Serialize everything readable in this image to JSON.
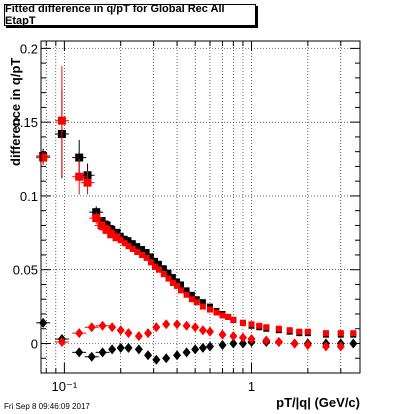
{
  "title": "Fitted difference in q/pT for Global Rec All EtapT",
  "xlabel": "pT/|q| (GeV/c)",
  "ylabel": "difference in q/pT",
  "timestamp": "Fri Sep  8 09:46:09 2017",
  "chart_data": {
    "type": "scatter",
    "title": "Fitted difference in q/pT for Global Rec All EtapT",
    "xlabel": "pT/|q| (GeV/c)",
    "ylabel": "difference in q/pT",
    "xscale": "log",
    "xlim": [
      0.075,
      3.8
    ],
    "ylim": [
      -0.02,
      0.205
    ],
    "grid": true,
    "x_ticks": [
      {
        "value": 0.1,
        "label": "10⁻¹"
      },
      {
        "value": 1,
        "label": "1"
      }
    ],
    "y_ticks": [
      {
        "value": 0,
        "label": "0"
      },
      {
        "value": 0.05,
        "label": "0.05"
      },
      {
        "value": 0.1,
        "label": "0.1"
      },
      {
        "value": 0.15,
        "label": "0.15"
      },
      {
        "value": 0.2,
        "label": "0.2"
      }
    ],
    "series": [
      {
        "marker": "square",
        "color": "#000000",
        "x": [
          0.077,
          0.097,
          0.12,
          0.133,
          0.148,
          0.158,
          0.168,
          0.178,
          0.19,
          0.2,
          0.21,
          0.22,
          0.232,
          0.245,
          0.26,
          0.275,
          0.29,
          0.305,
          0.32,
          0.34,
          0.36,
          0.38,
          0.4,
          0.42,
          0.45,
          0.48,
          0.51,
          0.55,
          0.6,
          0.65,
          0.7,
          0.75,
          0.8,
          0.9,
          1.0,
          1.1,
          1.2,
          1.4,
          1.6,
          1.8,
          2.0,
          2.5,
          3.0,
          3.5
        ],
        "y": [
          0.127,
          0.142,
          0.126,
          0.114,
          0.089,
          0.083,
          0.08,
          0.077,
          0.075,
          0.073,
          0.071,
          0.07,
          0.068,
          0.066,
          0.064,
          0.062,
          0.059,
          0.056,
          0.054,
          0.051,
          0.048,
          0.045,
          0.042,
          0.04,
          0.036,
          0.033,
          0.03,
          0.028,
          0.025,
          0.022,
          0.02,
          0.018,
          0.016,
          0.014,
          0.012,
          0.011,
          0.01,
          0.009,
          0.008,
          0.007,
          0.007,
          0.006,
          0.006,
          0.006
        ],
        "yerr": [
          0.005,
          0.03,
          0.012,
          0.008,
          0.004,
          0.002,
          0.001,
          0.001,
          0.001,
          0.001,
          0.001,
          0.001,
          0.001,
          0.001,
          0.001,
          0.001,
          0.001,
          0.001,
          0.001,
          0.001,
          0.001,
          0.001,
          0.001,
          0.001,
          0.001,
          0.001,
          0.001,
          0.001,
          0.001,
          0.001,
          0.001,
          0.001,
          0.001,
          0.001,
          0.001,
          0.001,
          0.001,
          0.001,
          0.001,
          0.001,
          0.001,
          0.001,
          0.001,
          0.001
        ]
      },
      {
        "marker": "square",
        "color": "#ff0000",
        "x": [
          0.077,
          0.097,
          0.12,
          0.133,
          0.148,
          0.158,
          0.168,
          0.178,
          0.19,
          0.2,
          0.21,
          0.22,
          0.232,
          0.245,
          0.26,
          0.275,
          0.29,
          0.305,
          0.32,
          0.34,
          0.36,
          0.38,
          0.4,
          0.42,
          0.45,
          0.48,
          0.51,
          0.55,
          0.6,
          0.65,
          0.7,
          0.75,
          0.8,
          0.9,
          1.0,
          1.1,
          1.2,
          1.4,
          1.6,
          1.8,
          2.0,
          2.5,
          3.0,
          3.5
        ],
        "y": [
          0.126,
          0.151,
          0.113,
          0.109,
          0.085,
          0.08,
          0.077,
          0.074,
          0.072,
          0.07,
          0.068,
          0.066,
          0.064,
          0.062,
          0.06,
          0.058,
          0.055,
          0.052,
          0.05,
          0.047,
          0.044,
          0.041,
          0.039,
          0.036,
          0.033,
          0.03,
          0.028,
          0.025,
          0.023,
          0.021,
          0.019,
          0.018,
          0.016,
          0.014,
          0.013,
          0.012,
          0.011,
          0.01,
          0.009,
          0.008,
          0.008,
          0.007,
          0.007,
          0.007
        ],
        "yerr": [
          0.005,
          0.037,
          0.012,
          0.008,
          0.004,
          0.002,
          0.001,
          0.001,
          0.001,
          0.001,
          0.001,
          0.001,
          0.001,
          0.001,
          0.001,
          0.001,
          0.001,
          0.001,
          0.001,
          0.001,
          0.001,
          0.001,
          0.001,
          0.001,
          0.001,
          0.001,
          0.001,
          0.001,
          0.001,
          0.001,
          0.001,
          0.001,
          0.001,
          0.001,
          0.001,
          0.001,
          0.001,
          0.001,
          0.001,
          0.001,
          0.001,
          0.001,
          0.001,
          0.001
        ]
      },
      {
        "marker": "diamond",
        "color": "#000000",
        "x": [
          0.077,
          0.097,
          0.12,
          0.14,
          0.16,
          0.18,
          0.2,
          0.22,
          0.25,
          0.28,
          0.31,
          0.35,
          0.4,
          0.45,
          0.5,
          0.55,
          0.6,
          0.7,
          0.8,
          0.9,
          1.0,
          1.2,
          1.4,
          1.7,
          2.0,
          2.5,
          3.0,
          3.5
        ],
        "y": [
          0.014,
          0.003,
          -0.006,
          -0.009,
          -0.006,
          -0.004,
          -0.003,
          -0.003,
          -0.004,
          -0.008,
          -0.011,
          -0.01,
          -0.008,
          -0.006,
          -0.004,
          -0.003,
          -0.002,
          -0.001,
          0.0,
          0.0,
          0.001,
          0.001,
          0.001,
          0.0,
          0.0,
          0.0,
          0.0,
          0.0
        ]
      },
      {
        "marker": "diamond",
        "color": "#ff0000",
        "x": [
          0.097,
          0.12,
          0.14,
          0.16,
          0.18,
          0.2,
          0.22,
          0.25,
          0.28,
          0.31,
          0.35,
          0.4,
          0.45,
          0.5,
          0.55,
          0.6,
          0.7,
          0.8,
          0.9,
          1.0,
          1.2,
          1.4,
          1.7,
          2.0,
          2.5,
          3.0
        ],
        "y": [
          0.001,
          0.007,
          0.011,
          0.012,
          0.011,
          0.009,
          0.007,
          0.005,
          0.007,
          0.011,
          0.013,
          0.013,
          0.012,
          0.011,
          0.009,
          0.008,
          0.006,
          0.005,
          0.004,
          0.003,
          0.002,
          0.001,
          0.0,
          -0.001,
          -0.002,
          -0.002
        ]
      }
    ]
  }
}
